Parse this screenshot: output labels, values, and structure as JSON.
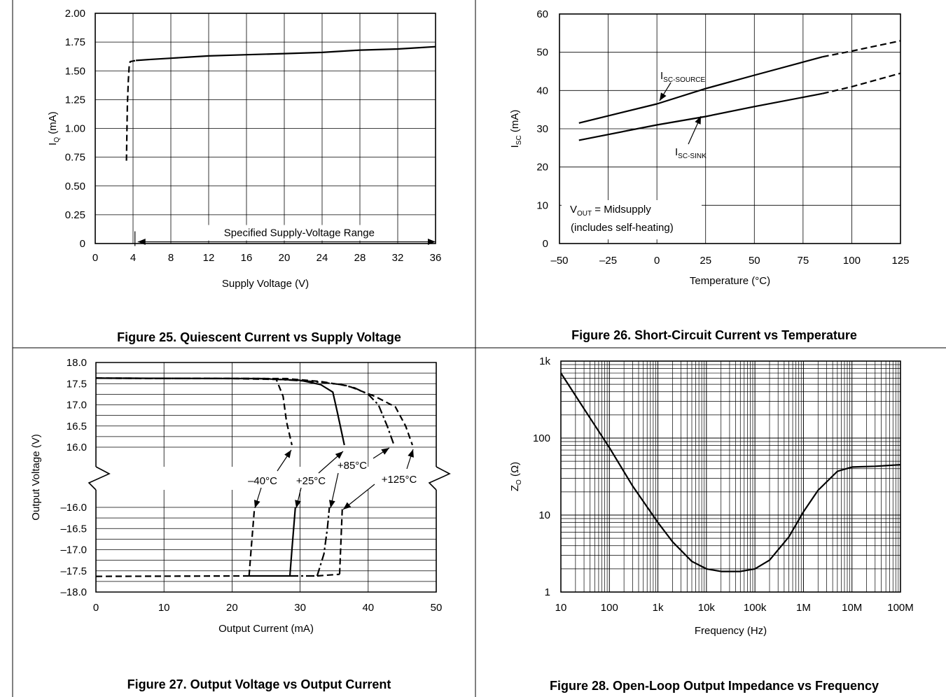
{
  "captions": [
    "Figure 25.  Quiescent Current vs Supply Voltage",
    "Figure 26.  Short-Circuit Current vs Temperature",
    "Figure 27. Output Voltage vs Output Current",
    "Figure 28.  Open-Loop Output Impedance vs Frequency"
  ],
  "chart_data": [
    {
      "type": "line",
      "title": "Figure 25.  Quiescent Current vs Supply Voltage",
      "xlabel": "Supply Voltage (V)",
      "ylabel_main": "I",
      "ylabel_sub": "Q",
      "ylabel_unit": " (mA)",
      "xlim": [
        0,
        36
      ],
      "ylim": [
        0,
        2.0
      ],
      "x_ticks": [
        "0",
        "4",
        "8",
        "12",
        "16",
        "20",
        "24",
        "28",
        "32",
        "36"
      ],
      "y_ticks": [
        "0",
        "0.25",
        "0.50",
        "0.75",
        "1.00",
        "1.25",
        "1.50",
        "1.75",
        "2.00"
      ],
      "grid": true,
      "series": [
        {
          "style": "dashed",
          "x": [
            3.3,
            3.35,
            3.4,
            3.5,
            3.6,
            3.7,
            4.3
          ],
          "y": [
            0.72,
            0.95,
            1.2,
            1.42,
            1.55,
            1.58,
            1.59
          ]
        },
        {
          "style": "solid",
          "x": [
            4.3,
            6,
            8,
            10,
            12,
            16,
            20,
            24,
            28,
            32,
            34,
            36
          ],
          "y": [
            1.59,
            1.6,
            1.61,
            1.62,
            1.63,
            1.64,
            1.65,
            1.66,
            1.68,
            1.69,
            1.7,
            1.71
          ]
        }
      ],
      "annotation": {
        "text": "Specified Supply-Voltage Range",
        "x_from": 4.5,
        "x_to": 36,
        "y": 0.1
      }
    },
    {
      "type": "line",
      "title": "Figure 26.  Short-Circuit Current vs Temperature",
      "xlabel": "Temperature (°C)",
      "ylabel_main": "I",
      "ylabel_sub": "SC",
      "ylabel_unit": " (mA)",
      "xlim": [
        -50,
        125
      ],
      "ylim": [
        0,
        60
      ],
      "x_ticks": [
        "–50",
        "–25",
        "0",
        "25",
        "50",
        "75",
        "100",
        "125"
      ],
      "y_ticks": [
        "0",
        "10",
        "20",
        "30",
        "40",
        "50",
        "60"
      ],
      "grid": true,
      "series": [
        {
          "name_main": "I",
          "name_sub": "SC-SOURCE",
          "solid": {
            "x": [
              -40,
              0,
              25,
              50,
              85
            ],
            "y": [
              31.5,
              36.5,
              40.5,
              44,
              48.8
            ]
          },
          "dashed": {
            "x": [
              85,
              100,
              125
            ],
            "y": [
              48.8,
              50.3,
              53
            ]
          }
        },
        {
          "name_main": "I",
          "name_sub": "SC-SINK",
          "solid": {
            "x": [
              -40,
              0,
              25,
              50,
              85
            ],
            "y": [
              27,
              31,
              33.2,
              35.8,
              39.2
            ]
          },
          "dashed": {
            "x": [
              85,
              100,
              125
            ],
            "y": [
              39.2,
              41,
              44.5
            ]
          }
        }
      ],
      "note_line1_main": "V",
      "note_line1_sub": "OUT",
      "note_line1_rest": " = Midsupply",
      "note_line2": "(includes self-heating)"
    },
    {
      "type": "line",
      "title": "Figure 27. Output Voltage vs Output Current",
      "xlabel": "Output Current (mA)",
      "ylabel": "Output Voltage (V)",
      "xlim": [
        0,
        50
      ],
      "x_ticks": [
        "0",
        "10",
        "20",
        "30",
        "40",
        "50"
      ],
      "y_ticks_top": [
        "18.0",
        "17.5",
        "17.0",
        "16.5",
        "16.0"
      ],
      "y_ticks_bottom": [
        "–16.0",
        "–16.5",
        "–17.0",
        "–17.5",
        "–18.0"
      ],
      "grid": true,
      "series_top": [
        {
          "name": "–40°C",
          "style": "dashed",
          "x": [
            0,
            20,
            26.5,
            27.5,
            28,
            28.8
          ],
          "y": [
            17.63,
            17.62,
            17.6,
            17.2,
            16.6,
            16.05
          ]
        },
        {
          "name": "+25°C",
          "style": "solid",
          "x": [
            0,
            24,
            30,
            33,
            34.8,
            35.5,
            36.5
          ],
          "y": [
            17.63,
            17.62,
            17.58,
            17.48,
            17.3,
            16.8,
            16.05
          ]
        },
        {
          "name": "+85°C",
          "style": "dashdot",
          "x": [
            0,
            25,
            32,
            36,
            38,
            40,
            41.5,
            42.8,
            43.8
          ],
          "y": [
            17.63,
            17.62,
            17.55,
            17.48,
            17.4,
            17.25,
            17.0,
            16.5,
            16.05
          ]
        },
        {
          "name": "+125°C",
          "style": "dashed",
          "x": [
            0,
            28,
            33,
            37,
            41,
            44,
            45.5,
            46.5
          ],
          "y": [
            17.63,
            17.62,
            17.55,
            17.45,
            17.2,
            16.95,
            16.5,
            16.05
          ]
        }
      ],
      "series_bottom": [
        {
          "name": "–40°C",
          "style": "dashed",
          "x": [
            22.5,
            22.8,
            23.3
          ],
          "y": [
            -17.62,
            -17.0,
            -16.0
          ]
        },
        {
          "name": "+25°C",
          "style": "solid",
          "x": [
            28.5,
            28.8,
            29.3
          ],
          "y": [
            -17.62,
            -17.0,
            -16.0
          ]
        },
        {
          "name": "+85°C",
          "style": "dashdot",
          "x": [
            32.5,
            33.5,
            34.0,
            34.3
          ],
          "y": [
            -17.62,
            -17.1,
            -16.5,
            -16.0
          ]
        },
        {
          "name": "+125°C",
          "style": "dashed",
          "x": [
            35.8,
            36.0,
            36.2
          ],
          "y": [
            -17.58,
            -16.8,
            -16.0
          ]
        }
      ],
      "base_lines": [
        {
          "style": "dashed",
          "x": [
            0,
            22.5
          ],
          "y": [
            -17.63,
            -17.62
          ]
        },
        {
          "style": "solid",
          "x": [
            22.5,
            28.5
          ],
          "y": [
            -17.62,
            -17.62
          ]
        },
        {
          "style": "dashdot",
          "x": [
            28.5,
            32.5
          ],
          "y": [
            -17.62,
            -17.62
          ]
        },
        {
          "style": "dashed",
          "x": [
            32.5,
            35.8
          ],
          "y": [
            -17.62,
            -17.58
          ]
        }
      ],
      "labels": [
        "–40°C",
        "+25°C",
        "+85°C",
        "+125°C"
      ]
    },
    {
      "type": "line",
      "title": "Figure 28.  Open-Loop Output Impedance vs Frequency",
      "xlabel": "Frequency (Hz)",
      "ylabel_main": "Z",
      "ylabel_sub": "O",
      "ylabel_unit": " (Ω)",
      "x_scale": "log",
      "y_scale": "log",
      "xlim": [
        10,
        100000000
      ],
      "ylim": [
        1,
        1000
      ],
      "x_ticks": [
        "10",
        "100",
        "1k",
        "10k",
        "100k",
        "1M",
        "10M",
        "100M"
      ],
      "y_ticks": [
        "1",
        "10",
        "100",
        "1k"
      ],
      "grid": true,
      "series": [
        {
          "style": "solid",
          "x": [
            10,
            30,
            100,
            300,
            1000,
            2000,
            5000,
            10000,
            20000,
            50000,
            100000,
            200000,
            500000,
            1000000,
            2000000,
            5000000,
            10000000,
            30000000,
            100000000
          ],
          "y": [
            700,
            240,
            75,
            24,
            8,
            4.5,
            2.5,
            2.0,
            1.85,
            1.85,
            2.0,
            2.6,
            5.2,
            11,
            21,
            37,
            42,
            43,
            45
          ]
        }
      ]
    }
  ]
}
